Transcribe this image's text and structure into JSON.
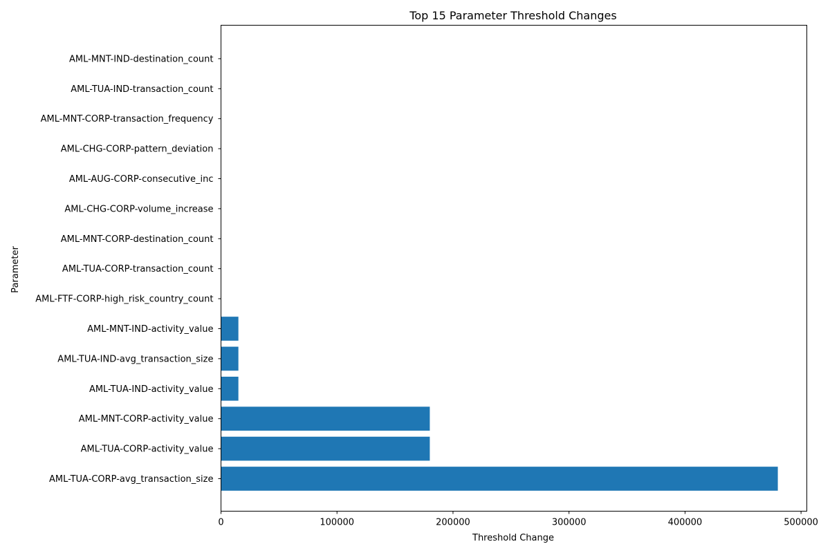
{
  "chart_data": {
    "type": "bar",
    "orientation": "horizontal",
    "title": "Top 15 Parameter Threshold Changes",
    "xlabel": "Threshold Change",
    "ylabel": "Parameter",
    "xlim": [
      0,
      505000
    ],
    "xticks": [
      0,
      100000,
      200000,
      300000,
      400000,
      500000
    ],
    "bar_color": "#1f77b4",
    "grid": false,
    "categories": [
      "AML-TUA-CORP-avg_transaction_size",
      "AML-TUA-CORP-activity_value",
      "AML-MNT-CORP-activity_value",
      "AML-TUA-IND-activity_value",
      "AML-TUA-IND-avg_transaction_size",
      "AML-MNT-IND-activity_value",
      "AML-FTF-CORP-high_risk_country_count",
      "AML-TUA-CORP-transaction_count",
      "AML-MNT-CORP-destination_count",
      "AML-CHG-CORP-volume_increase",
      "AML-AUG-CORP-consecutive_inc",
      "AML-CHG-CORP-pattern_deviation",
      "AML-MNT-CORP-transaction_frequency",
      "AML-TUA-IND-transaction_count",
      "AML-MNT-IND-destination_count"
    ],
    "values": [
      480000,
      180000,
      180000,
      15000,
      15000,
      15000,
      0,
      0,
      0,
      0,
      0,
      0,
      0,
      0,
      0
    ]
  }
}
